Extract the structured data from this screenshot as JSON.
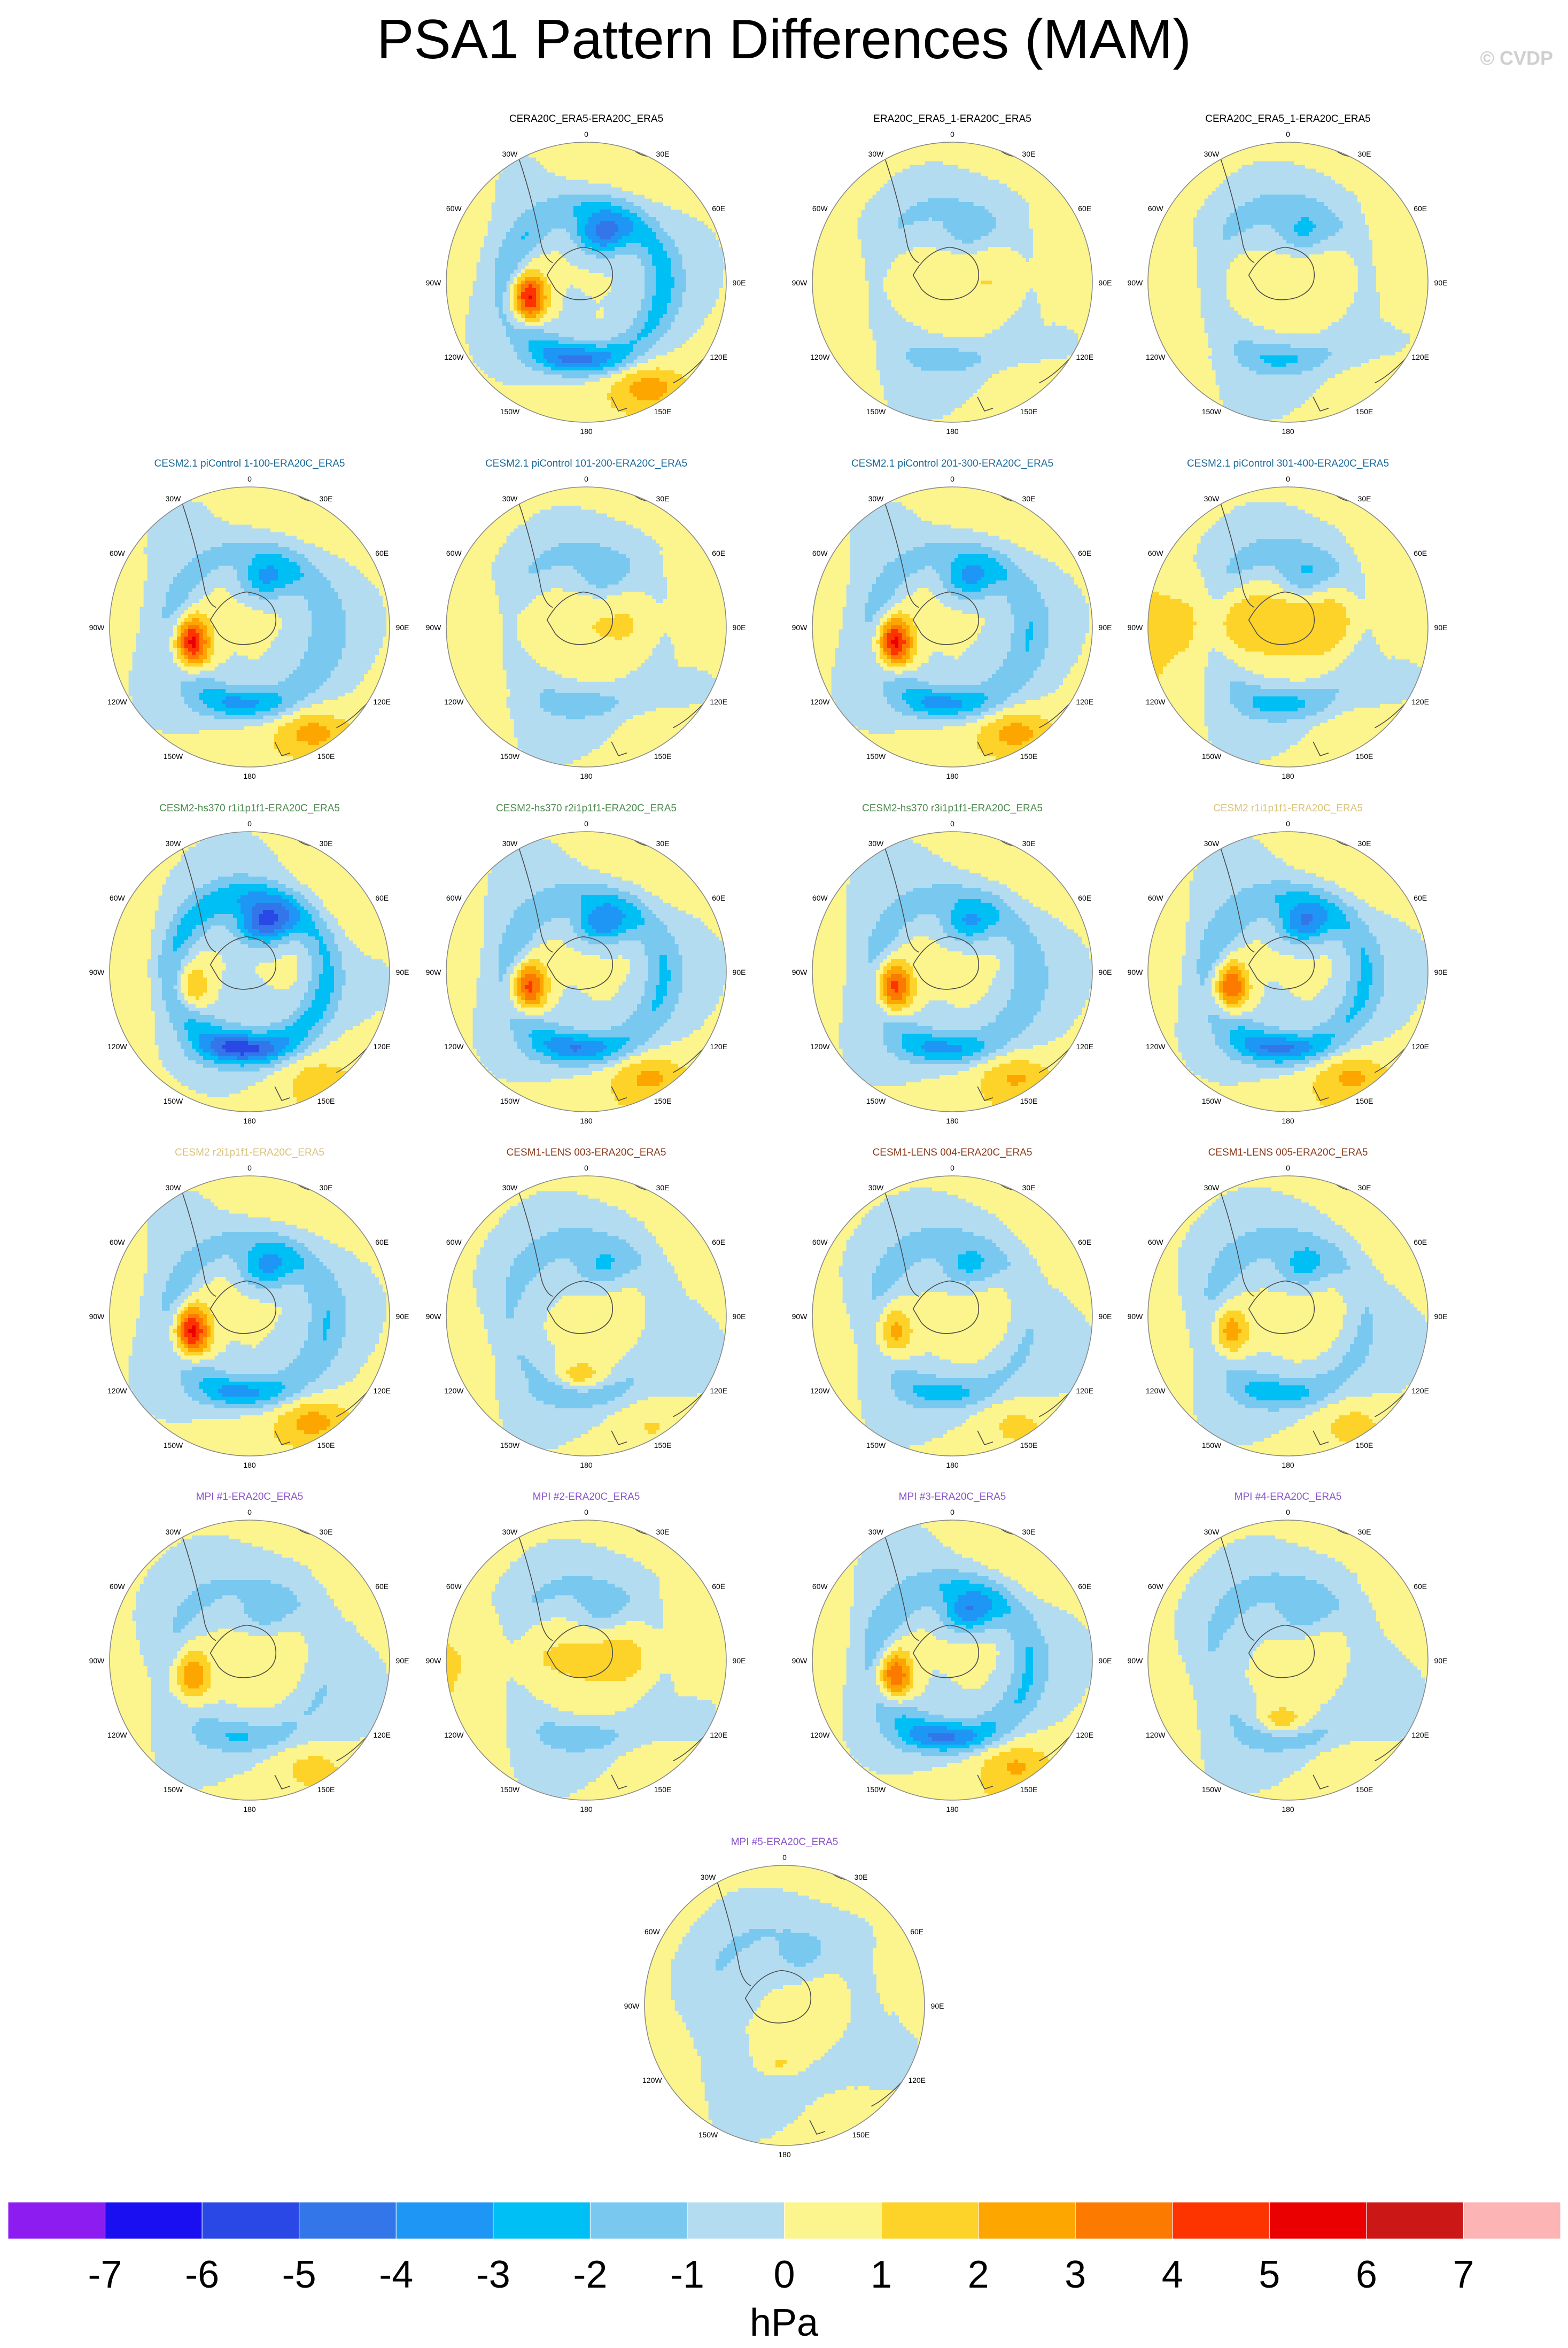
{
  "figure": {
    "title": "PSA1 Pattern Differences (MAM)",
    "credit": "© CVDP"
  },
  "lon_labels": [
    "0",
    "30E",
    "60E",
    "90E",
    "120E",
    "150E",
    "180",
    "150W",
    "120W",
    "90W",
    "60W",
    "30W"
  ],
  "panels": [
    {
      "title": "CERA20C_ERA5-ERA20C_ERA5",
      "title_color": "#000000",
      "pattern": {
        "pos_amp": 6.2,
        "neg_amp": 4.6,
        "pos_sector": "west"
      }
    },
    {
      "title": "ERA20C_ERA5_1-ERA20C_ERA5",
      "title_color": "#000000",
      "pattern": {
        "pos_amp": 0.8,
        "neg_amp": 1.6,
        "pos_sector": "broad"
      }
    },
    {
      "title": "CERA20C_ERA5_1-ERA20C_ERA5",
      "title_color": "#000000",
      "pattern": {
        "pos_amp": 0.7,
        "neg_amp": 2.1,
        "pos_sector": "broad"
      }
    },
    {
      "title": "CESM2.1 piControl 1-100-ERA20C_ERA5",
      "title_color": "#1a6a9a",
      "pattern": {
        "pos_amp": 6.0,
        "neg_amp": 3.5,
        "pos_sector": "west"
      }
    },
    {
      "title": "CESM2.1 piControl 101-200-ERA20C_ERA5",
      "title_color": "#1a6a9a",
      "pattern": {
        "pos_amp": 0.9,
        "neg_amp": 1.7,
        "pos_sector": "broad"
      }
    },
    {
      "title": "CESM2.1 piControl 201-300-ERA20C_ERA5",
      "title_color": "#1a6a9a",
      "pattern": {
        "pos_amp": 6.1,
        "neg_amp": 3.6,
        "pos_sector": "west"
      }
    },
    {
      "title": "CESM2.1 piControl 301-400-ERA20C_ERA5",
      "title_color": "#1a6a9a",
      "pattern": {
        "pos_amp": 1.8,
        "neg_amp": 2.4,
        "pos_sector": "broad"
      }
    },
    {
      "title": "CESM2-hs370 r1i1p1f1-ERA20C_ERA5",
      "title_color": "#4f8a50",
      "pattern": {
        "pos_amp": 2.6,
        "neg_amp": 5.3,
        "pos_sector": "west"
      }
    },
    {
      "title": "CESM2-hs370 r2i1p1f1-ERA20C_ERA5",
      "title_color": "#4f8a50",
      "pattern": {
        "pos_amp": 5.2,
        "neg_amp": 4.1,
        "pos_sector": "west"
      }
    },
    {
      "title": "CESM2-hs370 r3i1p1f1-ERA20C_ERA5",
      "title_color": "#4f8a50",
      "pattern": {
        "pos_amp": 5.0,
        "neg_amp": 3.4,
        "pos_sector": "west"
      }
    },
    {
      "title": "CESM2 r1i1p1f1-ERA20C_ERA5",
      "title_color": "#d8c27a",
      "pattern": {
        "pos_amp": 5.0,
        "neg_amp": 4.3,
        "pos_sector": "west"
      }
    },
    {
      "title": "CESM2 r2i1p1f1-ERA20C_ERA5",
      "title_color": "#d8c27a",
      "pattern": {
        "pos_amp": 6.1,
        "neg_amp": 3.6,
        "pos_sector": "west"
      }
    },
    {
      "title": "CESM1-LENS 003-ERA20C_ERA5",
      "title_color": "#8b3a1a",
      "pattern": {
        "pos_amp": 2.3,
        "neg_amp": 2.2,
        "pos_sector": "south"
      }
    },
    {
      "title": "CESM1-LENS 004-ERA20C_ERA5",
      "title_color": "#8b3a1a",
      "pattern": {
        "pos_amp": 2.7,
        "neg_amp": 2.4,
        "pos_sector": "west"
      }
    },
    {
      "title": "CESM1-LENS 005-ERA20C_ERA5",
      "title_color": "#8b3a1a",
      "pattern": {
        "pos_amp": 3.0,
        "neg_amp": 2.6,
        "pos_sector": "west"
      }
    },
    {
      "title": "MPI #1-ERA20C_ERA5",
      "title_color": "#8a55cc",
      "pattern": {
        "pos_amp": 3.3,
        "neg_amp": 2.0,
        "pos_sector": "west"
      }
    },
    {
      "title": "MPI #2-ERA20C_ERA5",
      "title_color": "#8a55cc",
      "pattern": {
        "pos_amp": 1.2,
        "neg_amp": 1.7,
        "pos_sector": "broad"
      }
    },
    {
      "title": "MPI #3-ERA20C_ERA5",
      "title_color": "#8a55cc",
      "pattern": {
        "pos_amp": 4.8,
        "neg_amp": 4.2,
        "pos_sector": "west"
      }
    },
    {
      "title": "MPI #4-ERA20C_ERA5",
      "title_color": "#8a55cc",
      "pattern": {
        "pos_amp": 2.2,
        "neg_amp": 2.0,
        "pos_sector": "south"
      }
    },
    {
      "title": "MPI #5-ERA20C_ERA5",
      "title_color": "#8a55cc",
      "pattern": {
        "pos_amp": 1.4,
        "neg_amp": 1.3,
        "pos_sector": "south"
      }
    }
  ],
  "colorbar": {
    "unit": "hPa",
    "tick_labels": [
      "-7",
      "-6",
      "-5",
      "-4",
      "-3",
      "-2",
      "-1",
      "0",
      "1",
      "2",
      "3",
      "4",
      "5",
      "6",
      "7"
    ],
    "colors": [
      "#8c1cf0",
      "#1a0ff0",
      "#2a48e6",
      "#3276ea",
      "#1e96f5",
      "#00bff5",
      "#78c8f0",
      "#b4dcf0",
      "#fcf48c",
      "#fdd32a",
      "#fda600",
      "#fd7a00",
      "#fd3300",
      "#ea0000",
      "#cc1717",
      "#fdb4b4"
    ]
  }
}
